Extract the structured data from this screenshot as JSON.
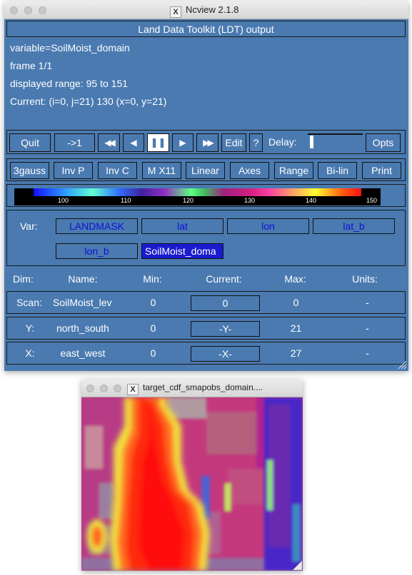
{
  "main_window": {
    "title": "Ncview 2.1.8",
    "header": "Land Data Toolkit (LDT) output",
    "info": {
      "variable": "variable=SoilMoist_domain",
      "frame": "frame 1/1",
      "range": "displayed range: 95 to 151",
      "current": "Current: (i=0, j=21) 130 (x=0, y=21)"
    },
    "toolbar1": {
      "quit": "Quit",
      "goto": "->1",
      "rewind": "◀◀",
      "back": "◀",
      "pause": "❚❚",
      "forward": "▶",
      "fastforward": "▶▶",
      "edit": "Edit",
      "help": "?",
      "delay_label": "Delay:",
      "opts": "Opts"
    },
    "toolbar2": [
      "3gauss",
      "Inv P",
      "Inv C",
      "M X11",
      "Linear",
      "Axes",
      "Range",
      "Bi-lin",
      "Print"
    ],
    "colorbar_ticks": [
      "100",
      "110",
      "120",
      "130",
      "140",
      "150"
    ],
    "var_label": "Var:",
    "vars": [
      "LANDMASK",
      "lat",
      "lon",
      "lat_b",
      "lon_b",
      "SoilMoist_doma"
    ],
    "selected_var": "SoilMoist_doma",
    "dim_headers": {
      "dim": "Dim:",
      "name": "Name:",
      "min": "Min:",
      "current": "Current:",
      "max": "Max:",
      "units": "Units:"
    },
    "dims": [
      {
        "dim": "Scan:",
        "name": "SoilMoist_lev",
        "min": "0",
        "current": "0",
        "max": "0",
        "units": "-"
      },
      {
        "dim": "Y:",
        "name": "north_south",
        "min": "0",
        "current": "-Y-",
        "max": "21",
        "units": "-"
      },
      {
        "dim": "X:",
        "name": "east_west",
        "min": "0",
        "current": "-X-",
        "max": "27",
        "units": "-"
      }
    ]
  },
  "image_window": {
    "title": "target_cdf_smapobs_domain...."
  },
  "colors": {
    "panel_bg": "#4a7ab0",
    "selected_bg": "#1a1ad0",
    "var_text": "#1010d8"
  }
}
